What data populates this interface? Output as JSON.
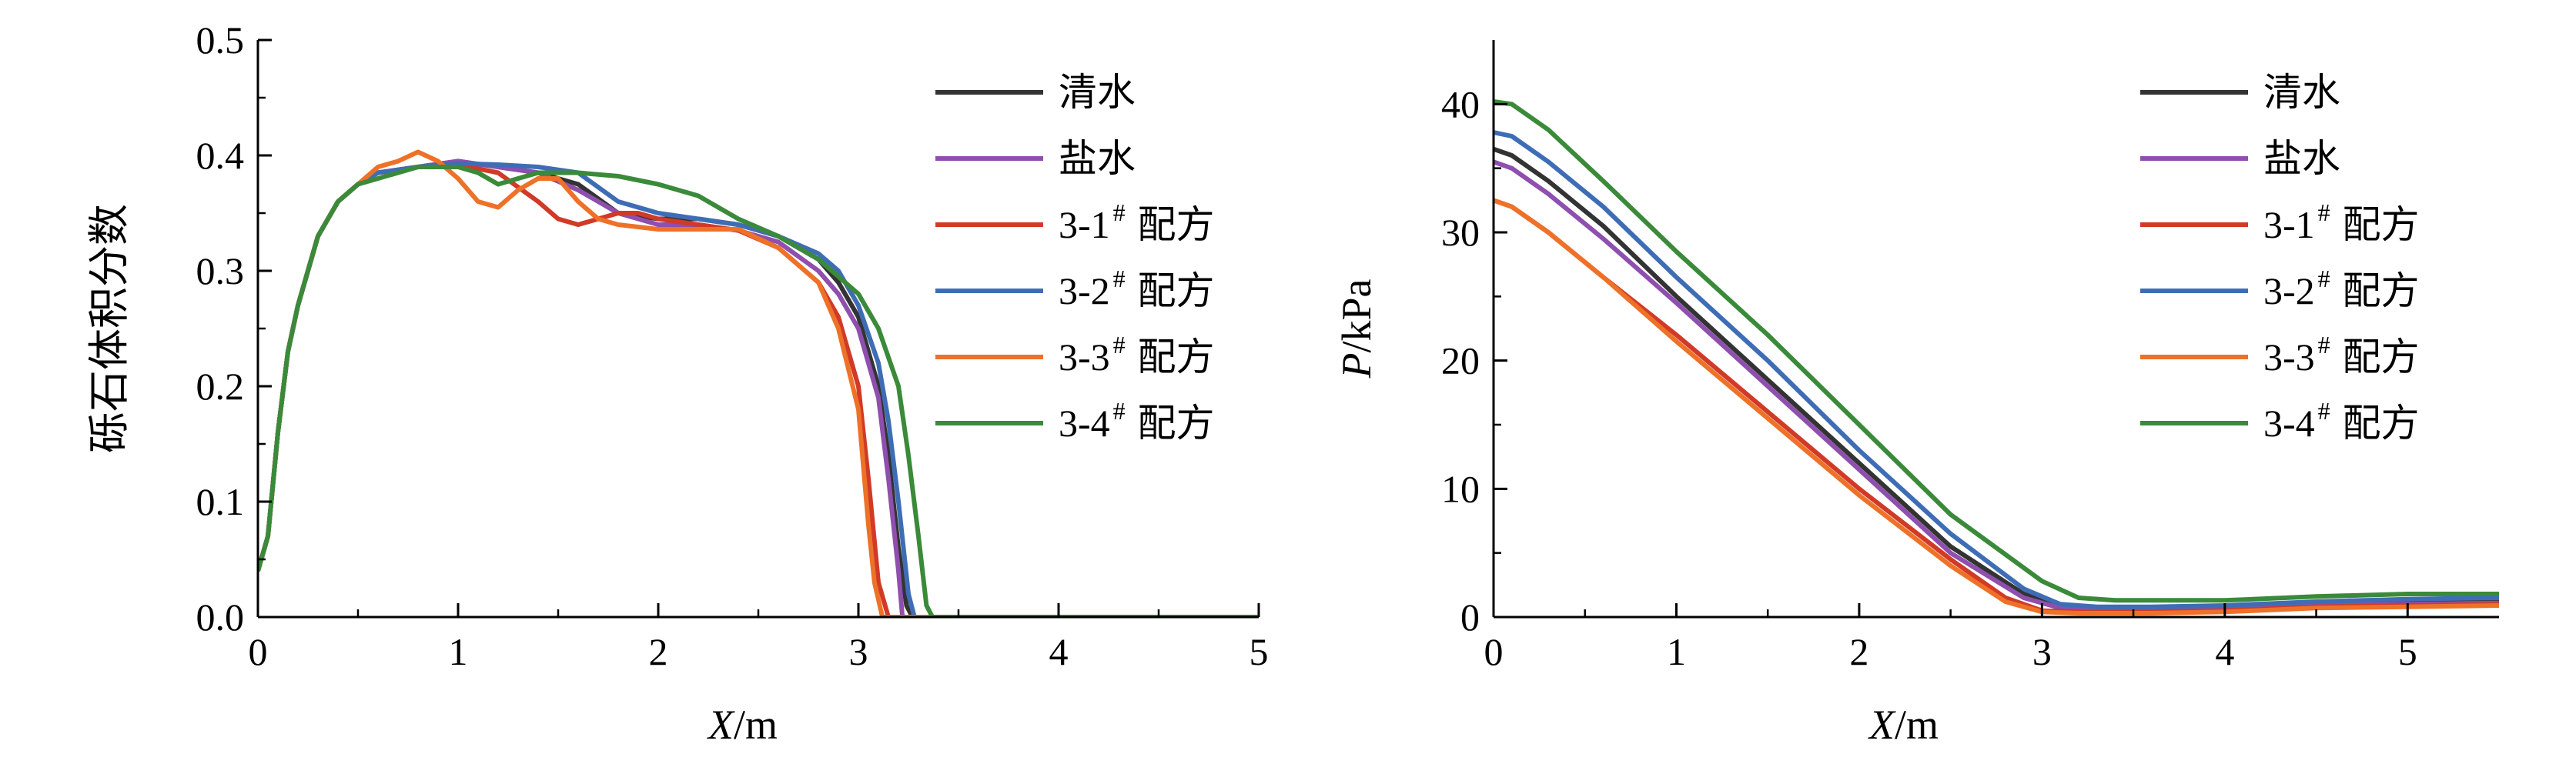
{
  "chart_data": [
    {
      "type": "line",
      "xlabel": "X/m",
      "ylabel": "砾石体积分数",
      "xlim": [
        0,
        5
      ],
      "ylim": [
        0,
        0.5
      ],
      "xticks": [
        "0",
        "1",
        "2",
        "3",
        "4",
        "5"
      ],
      "yticks": [
        "0.0",
        "0.1",
        "0.2",
        "0.3",
        "0.4",
        "0.5"
      ],
      "legend_position": "top-right",
      "series": [
        {
          "name": "清水",
          "color": "#333333",
          "x": [
            0,
            0.05,
            0.1,
            0.15,
            0.2,
            0.3,
            0.4,
            0.5,
            0.6,
            0.8,
            1.0,
            1.2,
            1.4,
            1.6,
            1.8,
            2.0,
            2.2,
            2.4,
            2.6,
            2.8,
            2.9,
            3.0,
            3.1,
            3.15,
            3.2,
            3.24,
            3.27,
            5
          ],
          "y": [
            0.04,
            0.07,
            0.16,
            0.23,
            0.27,
            0.33,
            0.36,
            0.375,
            0.385,
            0.39,
            0.395,
            0.39,
            0.385,
            0.375,
            0.35,
            0.345,
            0.345,
            0.34,
            0.33,
            0.31,
            0.29,
            0.26,
            0.2,
            0.14,
            0.06,
            0.01,
            0,
            0
          ]
        },
        {
          "name": "盐水",
          "color": "#8e4fae",
          "x": [
            0,
            0.05,
            0.1,
            0.15,
            0.2,
            0.3,
            0.4,
            0.5,
            0.6,
            0.8,
            1.0,
            1.2,
            1.4,
            1.6,
            1.8,
            2.0,
            2.2,
            2.4,
            2.6,
            2.8,
            2.9,
            3.0,
            3.1,
            3.15,
            3.2,
            3.22,
            5
          ],
          "y": [
            0.04,
            0.07,
            0.16,
            0.23,
            0.27,
            0.33,
            0.36,
            0.375,
            0.385,
            0.39,
            0.395,
            0.39,
            0.385,
            0.37,
            0.35,
            0.34,
            0.34,
            0.335,
            0.325,
            0.3,
            0.28,
            0.25,
            0.19,
            0.12,
            0.04,
            0,
            0
          ]
        },
        {
          "name": "3-1# 配方",
          "color": "#d03a27",
          "x": [
            0,
            0.05,
            0.1,
            0.15,
            0.2,
            0.3,
            0.4,
            0.5,
            0.6,
            0.8,
            1.0,
            1.2,
            1.4,
            1.5,
            1.6,
            1.8,
            1.9,
            2.0,
            2.2,
            2.4,
            2.6,
            2.8,
            2.9,
            3.0,
            3.05,
            3.1,
            3.15,
            5
          ],
          "y": [
            0.04,
            0.07,
            0.16,
            0.23,
            0.27,
            0.33,
            0.36,
            0.375,
            0.385,
            0.39,
            0.392,
            0.385,
            0.36,
            0.345,
            0.34,
            0.35,
            0.35,
            0.345,
            0.34,
            0.335,
            0.32,
            0.29,
            0.26,
            0.2,
            0.12,
            0.03,
            0,
            0
          ]
        },
        {
          "name": "3-2# 配方",
          "color": "#3f6db5",
          "x": [
            0,
            0.05,
            0.1,
            0.15,
            0.2,
            0.3,
            0.4,
            0.5,
            0.6,
            0.8,
            1.0,
            1.2,
            1.4,
            1.6,
            1.8,
            2.0,
            2.2,
            2.4,
            2.6,
            2.8,
            2.9,
            3.0,
            3.1,
            3.15,
            3.2,
            3.25,
            3.28,
            5
          ],
          "y": [
            0.04,
            0.07,
            0.16,
            0.23,
            0.27,
            0.33,
            0.36,
            0.375,
            0.385,
            0.39,
            0.393,
            0.392,
            0.39,
            0.385,
            0.36,
            0.35,
            0.345,
            0.34,
            0.33,
            0.315,
            0.3,
            0.27,
            0.22,
            0.17,
            0.1,
            0.02,
            0,
            0
          ]
        },
        {
          "name": "3-3# 配方",
          "color": "#ee7128",
          "x": [
            0,
            0.05,
            0.1,
            0.15,
            0.2,
            0.3,
            0.4,
            0.5,
            0.6,
            0.7,
            0.8,
            0.9,
            1.0,
            1.1,
            1.2,
            1.3,
            1.4,
            1.5,
            1.6,
            1.7,
            1.8,
            2.0,
            2.2,
            2.4,
            2.6,
            2.8,
            2.9,
            3.0,
            3.03,
            3.05,
            3.08,
            3.12,
            5
          ],
          "y": [
            0.04,
            0.07,
            0.16,
            0.23,
            0.27,
            0.33,
            0.36,
            0.375,
            0.39,
            0.395,
            0.403,
            0.395,
            0.38,
            0.36,
            0.355,
            0.37,
            0.38,
            0.38,
            0.36,
            0.345,
            0.34,
            0.336,
            0.336,
            0.336,
            0.32,
            0.29,
            0.25,
            0.18,
            0.12,
            0.08,
            0.03,
            0,
            0
          ]
        },
        {
          "name": "3-4# 配方",
          "color": "#3a8a3a",
          "x": [
            0,
            0.05,
            0.1,
            0.15,
            0.2,
            0.3,
            0.4,
            0.5,
            0.6,
            0.8,
            1.0,
            1.1,
            1.2,
            1.4,
            1.6,
            1.8,
            2.0,
            2.2,
            2.4,
            2.6,
            2.8,
            3.0,
            3.1,
            3.2,
            3.25,
            3.3,
            3.34,
            3.37,
            5
          ],
          "y": [
            0.04,
            0.07,
            0.16,
            0.23,
            0.27,
            0.33,
            0.36,
            0.375,
            0.38,
            0.39,
            0.39,
            0.385,
            0.375,
            0.385,
            0.385,
            0.382,
            0.375,
            0.365,
            0.345,
            0.33,
            0.31,
            0.28,
            0.25,
            0.2,
            0.14,
            0.07,
            0.01,
            0,
            0
          ]
        }
      ]
    },
    {
      "type": "line",
      "xlabel": "X/m",
      "ylabel": "P/kPa",
      "xlim": [
        0,
        5.5
      ],
      "ylim": [
        0,
        45
      ],
      "xticks": [
        "0",
        "1",
        "2",
        "3",
        "4",
        "5"
      ],
      "yticks": [
        "0",
        "10",
        "20",
        "30",
        "40"
      ],
      "legend_position": "top-right",
      "series": [
        {
          "name": "清水",
          "color": "#333333",
          "x": [
            0,
            0.1,
            0.3,
            0.6,
            1.0,
            1.5,
            2.0,
            2.5,
            2.9,
            3.1,
            3.3,
            3.6,
            4.0,
            4.5,
            5.0,
            5.5
          ],
          "y": [
            36.5,
            36,
            34,
            30.5,
            25,
            18.5,
            12,
            5.5,
            1.8,
            0.8,
            0.7,
            0.7,
            0.7,
            1.0,
            1.2,
            1.3
          ]
        },
        {
          "name": "盐水",
          "color": "#8e4fae",
          "x": [
            0,
            0.1,
            0.3,
            0.6,
            1.0,
            1.5,
            2.0,
            2.5,
            2.9,
            3.1,
            3.3,
            3.6,
            4.0,
            4.5,
            5.0,
            5.5
          ],
          "y": [
            35.5,
            35,
            33,
            29.5,
            24.5,
            18,
            11.5,
            5,
            1.5,
            0.7,
            0.6,
            0.6,
            0.7,
            0.9,
            1.0,
            1.1
          ]
        },
        {
          "name": "3-1# 配方",
          "color": "#d03a27",
          "x": [
            0,
            0.1,
            0.3,
            0.6,
            1.0,
            1.5,
            2.0,
            2.5,
            2.8,
            3.0,
            3.2,
            3.6,
            4.0,
            4.5,
            5.0,
            5.5
          ],
          "y": [
            32.5,
            32,
            30,
            26.5,
            22,
            16,
            10,
            4.5,
            1.5,
            0.5,
            0.4,
            0.4,
            0.5,
            0.8,
            0.9,
            1.0
          ]
        },
        {
          "name": "3-2# 配方",
          "color": "#3f6db5",
          "x": [
            0,
            0.1,
            0.3,
            0.6,
            1.0,
            1.5,
            2.0,
            2.5,
            2.9,
            3.1,
            3.3,
            3.6,
            4.0,
            4.5,
            5.0,
            5.5
          ],
          "y": [
            37.8,
            37.5,
            35.5,
            32,
            26.5,
            20,
            13,
            6.5,
            2.2,
            1.0,
            0.8,
            0.8,
            0.9,
            1.2,
            1.4,
            1.5
          ]
        },
        {
          "name": "3-3# 配方",
          "color": "#ee7128",
          "x": [
            0,
            0.1,
            0.3,
            0.6,
            1.0,
            1.5,
            2.0,
            2.5,
            2.8,
            3.0,
            3.2,
            3.6,
            4.0,
            4.5,
            5.0,
            5.5
          ],
          "y": [
            32.5,
            32,
            30,
            26.5,
            21.5,
            15.5,
            9.5,
            4,
            1.2,
            0.4,
            0.3,
            0.3,
            0.4,
            0.7,
            0.8,
            0.9
          ]
        },
        {
          "name": "3-4# 配方",
          "color": "#3a8a3a",
          "x": [
            0,
            0.1,
            0.3,
            0.6,
            1.0,
            1.5,
            2.0,
            2.5,
            3.0,
            3.2,
            3.4,
            3.7,
            4.0,
            4.5,
            5.0,
            5.5
          ],
          "y": [
            40.2,
            40,
            38,
            34,
            28.5,
            22,
            15,
            8,
            2.8,
            1.5,
            1.3,
            1.3,
            1.3,
            1.6,
            1.8,
            1.8
          ]
        }
      ]
    }
  ]
}
